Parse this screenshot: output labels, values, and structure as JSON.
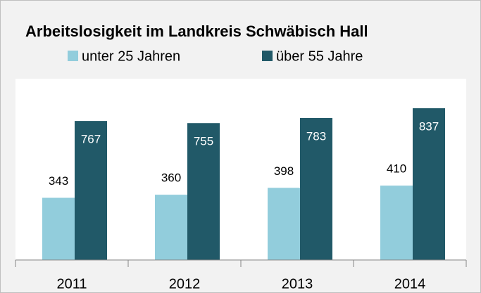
{
  "chart_data": {
    "type": "bar",
    "title": "Arbeitslosigkeit im Landkreis Schwäbisch Hall",
    "categories": [
      "2011",
      "2012",
      "2013",
      "2014"
    ],
    "series": [
      {
        "name": "unter 25 Jahren",
        "color": "#92cddc",
        "values": [
          343,
          360,
          398,
          410
        ]
      },
      {
        "name": "über 55 Jahre",
        "color": "#215968",
        "values": [
          767,
          755,
          783,
          837
        ]
      }
    ],
    "ylim": [
      0,
      1000
    ],
    "legend": "top"
  }
}
